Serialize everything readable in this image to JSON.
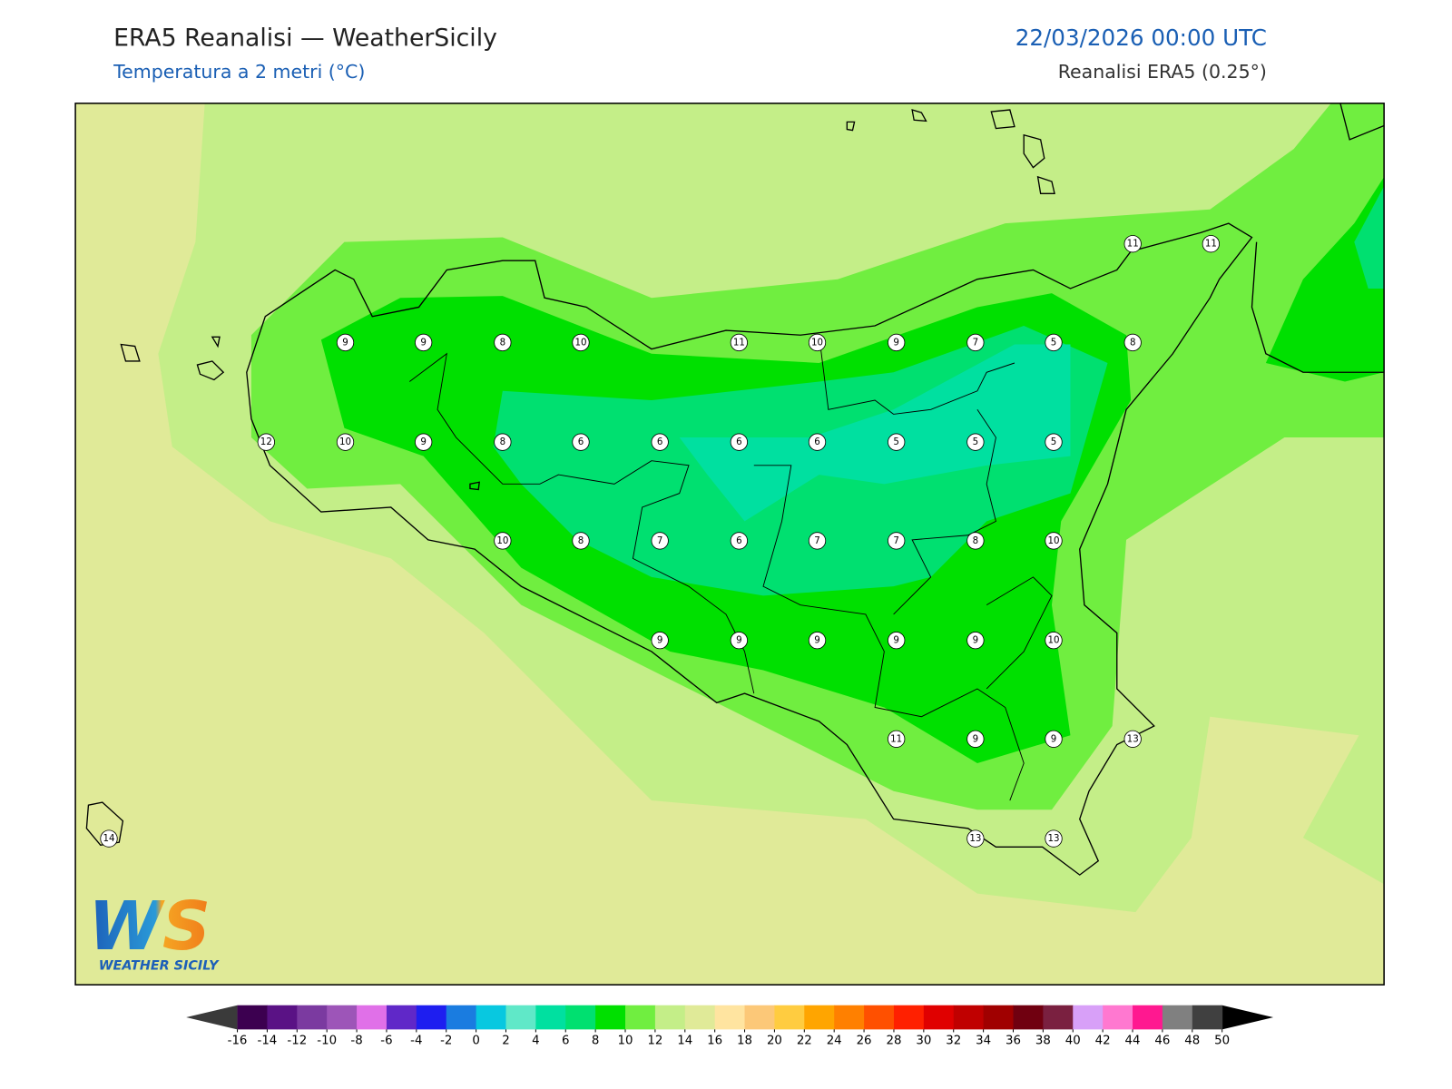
{
  "header": {
    "title": "ERA5 Reanalisi — WeatherSicily",
    "subtitle": "Temperatura a 2 metri (°C)",
    "datetime": "22/03/2026 00:00 UTC",
    "source": "Reanalisi ERA5 (0.25°)"
  },
  "stations": [
    11,
    11,
    9,
    9,
    8,
    10,
    11,
    10,
    9,
    7,
    5,
    8,
    12,
    10,
    9,
    8,
    6,
    6,
    6,
    6,
    5,
    5,
    5,
    10,
    8,
    7,
    6,
    7,
    7,
    8,
    10,
    9,
    9,
    9,
    9,
    9,
    10,
    11,
    9,
    9,
    13,
    14,
    13,
    13
  ],
  "colorbar": {
    "ticks": [
      -16,
      -14,
      -12,
      -10,
      -8,
      -6,
      -4,
      -2,
      0,
      2,
      4,
      6,
      8,
      10,
      12,
      14,
      16,
      18,
      20,
      22,
      24,
      26,
      28,
      30,
      32,
      34,
      36,
      38,
      40,
      42,
      44,
      46,
      48,
      50
    ],
    "colors": [
      "#3c0050",
      "#5a1285",
      "#7b3aa0",
      "#9d55b8",
      "#e070e8",
      "#6028c8",
      "#1e1ef0",
      "#1a7ce0",
      "#08c8e0",
      "#60e8c8",
      "#00e0a0",
      "#00e070",
      "#00e000",
      "#70ee40",
      "#c4ee88",
      "#e0ea98",
      "#ffe4a0",
      "#fcc878",
      "#ffcc40",
      "#ffa500",
      "#ff8000",
      "#ff5000",
      "#ff2000",
      "#e00000",
      "#c00000",
      "#a00000",
      "#700010",
      "#7a2040",
      "#d8a0f8",
      "#ff78d0",
      "#ff1890",
      "#808080",
      "#404040"
    ],
    "under_color": "#3a3a3a",
    "over_color": "#000000"
  },
  "logo": {
    "mark": "WS",
    "name": "WEATHER SICILY"
  }
}
